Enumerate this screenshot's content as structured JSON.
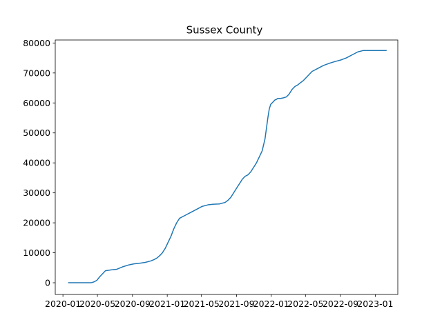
{
  "chart_data": {
    "type": "line",
    "title": "Sussex County",
    "xlabel": "",
    "ylabel": "",
    "grid": false,
    "color": "#1f77b4",
    "xlim": [
      "2019-12-05",
      "2023-03-21"
    ],
    "ylim": [
      -3900,
      81000
    ],
    "x_ticks": [
      {
        "value": "2020-01-01",
        "label": "2020-01"
      },
      {
        "value": "2020-05-01",
        "label": "2020-05"
      },
      {
        "value": "2020-09-01",
        "label": "2020-09"
      },
      {
        "value": "2021-01-01",
        "label": "2021-01"
      },
      {
        "value": "2021-05-01",
        "label": "2021-05"
      },
      {
        "value": "2021-09-01",
        "label": "2021-09"
      },
      {
        "value": "2022-01-01",
        "label": "2022-01"
      },
      {
        "value": "2022-05-01",
        "label": "2022-05"
      },
      {
        "value": "2022-09-01",
        "label": "2022-09"
      },
      {
        "value": "2023-01-01",
        "label": "2023-01"
      }
    ],
    "y_ticks": [
      {
        "value": 0,
        "label": "0"
      },
      {
        "value": 10000,
        "label": "10000"
      },
      {
        "value": 20000,
        "label": "20000"
      },
      {
        "value": 30000,
        "label": "30000"
      },
      {
        "value": 40000,
        "label": "40000"
      },
      {
        "value": 50000,
        "label": "50000"
      },
      {
        "value": 60000,
        "label": "60000"
      },
      {
        "value": 70000,
        "label": "70000"
      },
      {
        "value": 80000,
        "label": "80000"
      }
    ],
    "series": [
      {
        "x": [
          "2020-01-21",
          "2020-03-20",
          "2020-03-30",
          "2020-04-09",
          "2020-04-19",
          "2020-04-29",
          "2020-05-09",
          "2020-05-19",
          "2020-05-29",
          "2020-06-18",
          "2020-07-08",
          "2020-07-28",
          "2020-08-17",
          "2020-09-06",
          "2020-09-26",
          "2020-10-16",
          "2020-11-05",
          "2020-11-15",
          "2020-11-25",
          "2020-12-05",
          "2020-12-15",
          "2020-12-25",
          "2021-01-04",
          "2021-01-14",
          "2021-01-24",
          "2021-02-03",
          "2021-02-13",
          "2021-03-05",
          "2021-03-25",
          "2021-04-14",
          "2021-05-04",
          "2021-05-24",
          "2021-06-13",
          "2021-07-03",
          "2021-07-23",
          "2021-08-02",
          "2021-08-12",
          "2021-08-22",
          "2021-09-01",
          "2021-09-11",
          "2021-09-21",
          "2021-10-01",
          "2021-10-11",
          "2021-10-21",
          "2021-10-31",
          "2021-11-10",
          "2021-11-20",
          "2021-11-30",
          "2021-12-10",
          "2021-12-20",
          "2021-12-25",
          "2021-12-30",
          "2022-01-04",
          "2022-01-09",
          "2022-01-14",
          "2022-01-19",
          "2022-01-24",
          "2022-02-03",
          "2022-02-13",
          "2022-02-23",
          "2022-03-05",
          "2022-03-15",
          "2022-03-25",
          "2022-04-04",
          "2022-04-14",
          "2022-04-24",
          "2022-05-04",
          "2022-05-14",
          "2022-05-24",
          "2022-06-13",
          "2022-07-03",
          "2022-07-23",
          "2022-08-12",
          "2022-09-01",
          "2022-09-21",
          "2022-10-11",
          "2022-10-31",
          "2022-11-20",
          "2022-12-10",
          "2022-12-30",
          "2023-01-19",
          "2023-02-08"
        ],
        "y": [
          0,
          0,
          0,
          0,
          300,
          800,
          2000,
          3000,
          4000,
          4300,
          4500,
          5300,
          5900,
          6300,
          6500,
          6800,
          7300,
          7700,
          8200,
          9000,
          10000,
          11500,
          13500,
          15500,
          18000,
          20000,
          21500,
          22500,
          23500,
          24500,
          25500,
          26000,
          26200,
          26300,
          26800,
          27500,
          28500,
          30000,
          31500,
          33000,
          34500,
          35500,
          36000,
          37000,
          38500,
          40000,
          42000,
          44000,
          48000,
          55000,
          58000,
          59500,
          60000,
          60500,
          61000,
          61200,
          61500,
          61500,
          61700,
          62000,
          63000,
          64500,
          65500,
          66000,
          66800,
          67500,
          68500,
          69500,
          70500,
          71500,
          72500,
          73200,
          73800,
          74300,
          75000,
          76000,
          77000,
          77500,
          77500,
          77500,
          77500,
          77500
        ]
      }
    ]
  }
}
